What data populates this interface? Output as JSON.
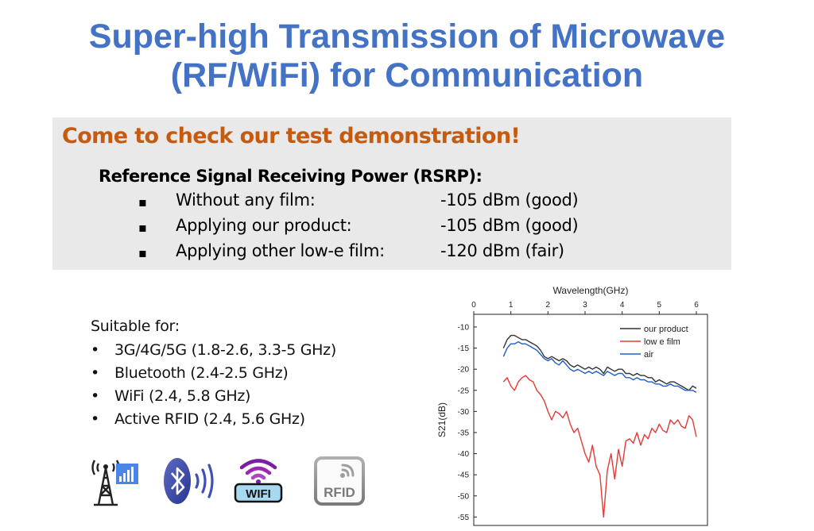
{
  "title": {
    "line1": "Super-high Transmission of Microwave",
    "line2": "(RF/WiFi) for Communication"
  },
  "demo": {
    "heading": "Come to check our test demonstration!",
    "rsrp_title": "Reference Signal Receiving Power (RSRP):",
    "bullet": "▪",
    "rows": [
      {
        "label": "Without any film:",
        "value": "-105 dBm (good)"
      },
      {
        "label": "Applying our product:",
        "value": "-105 dBm (good)"
      },
      {
        "label": "Applying other low-e film:",
        "value": "-120 dBm (fair)"
      }
    ]
  },
  "suitable": {
    "title": "Suitable for:",
    "bullet": "•",
    "items": [
      "3G/4G/5G (1.8-2.6, 3.3-5 GHz)",
      "Bluetooth (2.4-2.5 GHz)",
      "WiFi (2.4, 5.8 GHz)",
      "Active RFID (2.4, 5.6 GHz)"
    ]
  },
  "icons": {
    "wifi_label": "WIFI",
    "rfid_label": "RFID",
    "colors": {
      "tower": "#222222",
      "signal": "#3a7bd5",
      "bluetooth": "#3f51b5",
      "rfid": "#8a8a8a"
    }
  },
  "colors": {
    "title": "#4472c4",
    "heading": "#c55a11",
    "box": "#e9e9e9"
  },
  "chart_data": {
    "type": "line",
    "title": "",
    "xlabel": "Wavelength(GHz)",
    "ylabel": "S21(dB)",
    "xlim": [
      0,
      6.3
    ],
    "ylim": [
      -57,
      -7
    ],
    "xticks": [
      0,
      1,
      2,
      3,
      4,
      5,
      6
    ],
    "yticks": [
      -10,
      -15,
      -20,
      -25,
      -30,
      -35,
      -40,
      -45,
      -50,
      -55
    ],
    "legend_position": "top-right",
    "series": [
      {
        "name": "our product",
        "color": "#333333",
        "x": [
          0.8,
          0.9,
          1.0,
          1.1,
          1.2,
          1.3,
          1.4,
          1.5,
          1.6,
          1.7,
          1.8,
          1.9,
          2.0,
          2.1,
          2.2,
          2.3,
          2.4,
          2.5,
          2.6,
          2.7,
          2.8,
          2.9,
          3.0,
          3.1,
          3.2,
          3.3,
          3.4,
          3.5,
          3.6,
          3.7,
          3.8,
          3.9,
          4.0,
          4.1,
          4.2,
          4.3,
          4.4,
          4.5,
          4.6,
          4.7,
          4.8,
          4.9,
          5.0,
          5.1,
          5.2,
          5.3,
          5.4,
          5.5,
          5.6,
          5.7,
          5.8,
          5.9,
          6.0
        ],
        "y": [
          -15,
          -13,
          -12,
          -12,
          -12.5,
          -13,
          -13,
          -13.5,
          -14,
          -14.5,
          -15.5,
          -17,
          -17.5,
          -17,
          -17.5,
          -18,
          -17.5,
          -18,
          -19,
          -19.5,
          -19,
          -19.5,
          -20,
          -19.5,
          -20,
          -19.5,
          -20,
          -21,
          -19.5,
          -20,
          -20.5,
          -20,
          -20,
          -21,
          -21,
          -21.5,
          -21,
          -21.5,
          -21.5,
          -22,
          -22,
          -23,
          -22.5,
          -23,
          -23.5,
          -23,
          -23,
          -23.5,
          -24,
          -24.5,
          -25,
          -24,
          -24.5
        ]
      },
      {
        "name": "low e film",
        "color": "#e53935",
        "x": [
          0.8,
          0.9,
          1.0,
          1.1,
          1.2,
          1.3,
          1.4,
          1.5,
          1.6,
          1.7,
          1.8,
          1.9,
          2.0,
          2.1,
          2.2,
          2.3,
          2.4,
          2.5,
          2.6,
          2.7,
          2.8,
          2.9,
          3.0,
          3.1,
          3.2,
          3.3,
          3.4,
          3.5,
          3.6,
          3.7,
          3.8,
          3.9,
          4.0,
          4.1,
          4.2,
          4.3,
          4.4,
          4.5,
          4.6,
          4.7,
          4.8,
          4.9,
          5.0,
          5.1,
          5.2,
          5.3,
          5.4,
          5.5,
          5.6,
          5.7,
          5.8,
          5.9,
          6.0
        ],
        "y": [
          -23,
          -22,
          -24,
          -25,
          -23,
          -22,
          -21.5,
          -22.5,
          -23,
          -25,
          -26,
          -27.5,
          -30,
          -32,
          -30,
          -30.5,
          -31.5,
          -30,
          -33,
          -35,
          -34,
          -37,
          -40,
          -42,
          -38,
          -43,
          -45,
          -55,
          -44,
          -40,
          -46,
          -39,
          -43,
          -37,
          -36.5,
          -37.5,
          -35,
          -38,
          -35.5,
          -36.5,
          -34,
          -35,
          -33,
          -34.5,
          -35,
          -32,
          -33,
          -32,
          -33.5,
          -34,
          -31,
          -32,
          -36
        ]
      },
      {
        "name": "air",
        "color": "#1e5fc8",
        "x": [
          0.8,
          0.9,
          1.0,
          1.1,
          1.2,
          1.3,
          1.4,
          1.5,
          1.6,
          1.7,
          1.8,
          1.9,
          2.0,
          2.1,
          2.2,
          2.3,
          2.4,
          2.5,
          2.6,
          2.7,
          2.8,
          2.9,
          3.0,
          3.1,
          3.2,
          3.3,
          3.4,
          3.5,
          3.6,
          3.7,
          3.8,
          3.9,
          4.0,
          4.1,
          4.2,
          4.3,
          4.4,
          4.5,
          4.6,
          4.7,
          4.8,
          4.9,
          5.0,
          5.1,
          5.2,
          5.3,
          5.4,
          5.5,
          5.6,
          5.7,
          5.8,
          5.9,
          6.0
        ],
        "y": [
          -17,
          -15,
          -14,
          -14,
          -13.5,
          -14,
          -14,
          -14.5,
          -15,
          -15.5,
          -16.5,
          -17.5,
          -18,
          -17.5,
          -18.5,
          -19,
          -18,
          -19,
          -20,
          -20.5,
          -20,
          -20.5,
          -21,
          -20.5,
          -21,
          -20.5,
          -21,
          -21.5,
          -20.5,
          -21,
          -21.5,
          -21,
          -21,
          -22,
          -22,
          -22.5,
          -22,
          -22.5,
          -22.5,
          -23,
          -23,
          -23.5,
          -23.5,
          -24,
          -24,
          -23.5,
          -24,
          -24,
          -24.5,
          -25,
          -25,
          -25,
          -25.5
        ]
      }
    ]
  }
}
